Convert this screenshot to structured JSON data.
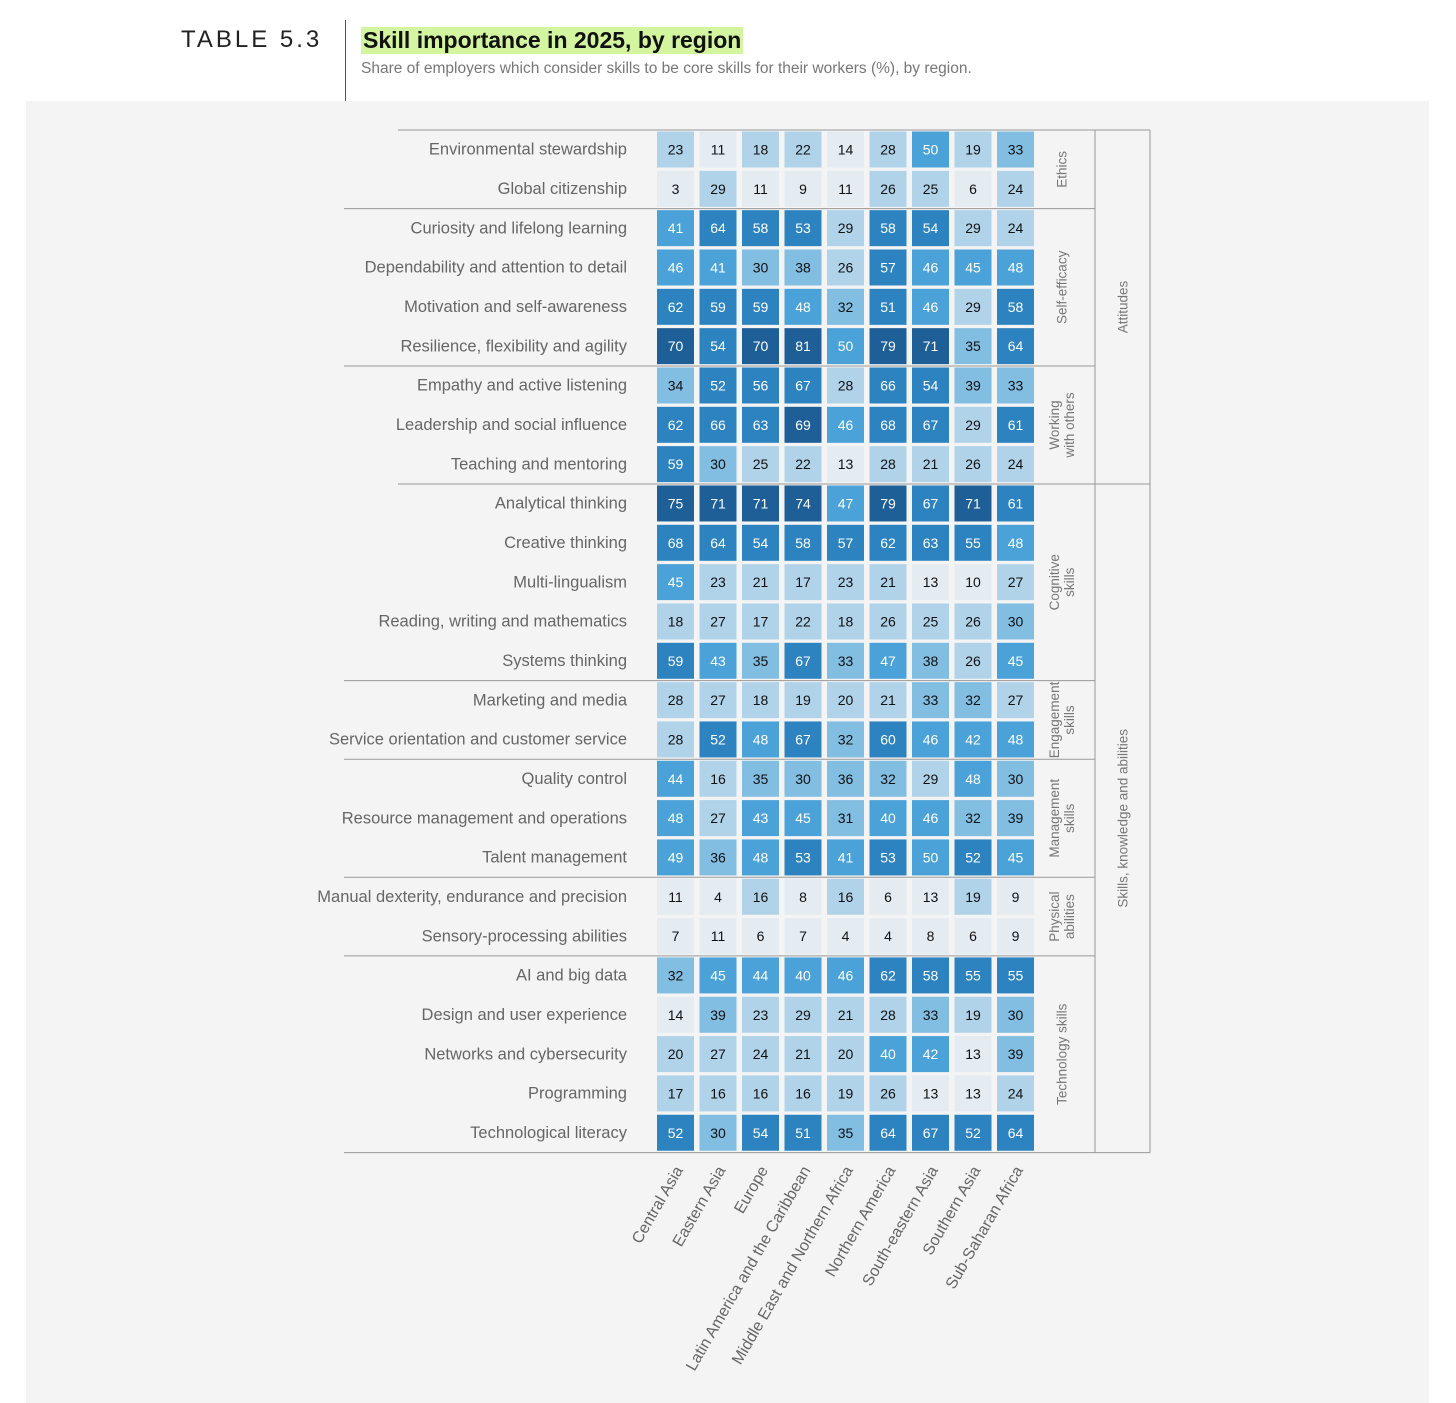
{
  "header": {
    "table_label": "TABLE 5.3",
    "title": "Skill importance in 2025, by region",
    "subtitle": "Share of employers which consider skills to be core skills for their workers (%), by region."
  },
  "colors": {
    "scale": [
      "#e4ebf1",
      "#b1d3ea",
      "#82bde2",
      "#4ba2d8",
      "#2d83c0",
      "#1e5f98"
    ],
    "highlight": "#d4f5a0"
  },
  "chart_data": {
    "type": "heatmap",
    "title": "Skill importance in 2025, by region",
    "subtitle": "Share of employers which consider skills to be core skills for their workers (%), by region.",
    "columns": [
      "Central Asia",
      "Eastern Asia",
      "Europe",
      "Latin America and the Caribbean",
      "Middle East and Northern Africa",
      "Northern America",
      "South-eastern Asia",
      "Southern Asia",
      "Sub-Saharan Africa"
    ],
    "rows": [
      "Environmental stewardship",
      "Global citizenship",
      "Curiosity and lifelong learning",
      "Dependability and attention to detail",
      "Motivation and self-awareness",
      "Resilience, flexibility and agility",
      "Empathy and active listening",
      "Leadership and social influence",
      "Teaching and mentoring",
      "Analytical thinking",
      "Creative thinking",
      "Multi-lingualism",
      "Reading, writing and mathematics",
      "Systems thinking",
      "Marketing and media",
      "Service orientation and customer service",
      "Quality control",
      "Resource management and operations",
      "Talent management",
      "Manual dexterity, endurance and precision",
      "Sensory-processing abilities",
      "AI and big data",
      "Design and user experience",
      "Networks and cybersecurity",
      "Programming",
      "Technological literacy"
    ],
    "values": [
      [
        23,
        11,
        18,
        22,
        14,
        28,
        50,
        19,
        33
      ],
      [
        3,
        29,
        11,
        9,
        11,
        26,
        25,
        6,
        24
      ],
      [
        41,
        64,
        58,
        53,
        29,
        58,
        54,
        29,
        24
      ],
      [
        46,
        41,
        30,
        38,
        26,
        57,
        46,
        45,
        48
      ],
      [
        62,
        59,
        59,
        48,
        32,
        51,
        46,
        29,
        58
      ],
      [
        70,
        54,
        70,
        81,
        50,
        79,
        71,
        35,
        64
      ],
      [
        34,
        52,
        56,
        67,
        28,
        66,
        54,
        39,
        33
      ],
      [
        62,
        66,
        63,
        69,
        46,
        68,
        67,
        29,
        61
      ],
      [
        59,
        30,
        25,
        22,
        13,
        28,
        21,
        26,
        24
      ],
      [
        75,
        71,
        71,
        74,
        47,
        79,
        67,
        71,
        61
      ],
      [
        68,
        64,
        54,
        58,
        57,
        62,
        63,
        55,
        48
      ],
      [
        45,
        23,
        21,
        17,
        23,
        21,
        13,
        10,
        27
      ],
      [
        18,
        27,
        17,
        22,
        18,
        26,
        25,
        26,
        30
      ],
      [
        59,
        43,
        35,
        67,
        33,
        47,
        38,
        26,
        45
      ],
      [
        28,
        27,
        18,
        19,
        20,
        21,
        33,
        32,
        27
      ],
      [
        28,
        52,
        48,
        67,
        32,
        60,
        46,
        42,
        48
      ],
      [
        44,
        16,
        35,
        30,
        36,
        32,
        29,
        48,
        30
      ],
      [
        48,
        27,
        43,
        45,
        31,
        40,
        46,
        32,
        39
      ],
      [
        49,
        36,
        48,
        53,
        41,
        53,
        50,
        52,
        45
      ],
      [
        11,
        4,
        16,
        8,
        16,
        6,
        13,
        19,
        9
      ],
      [
        7,
        11,
        6,
        7,
        4,
        4,
        8,
        6,
        9
      ],
      [
        32,
        45,
        44,
        40,
        46,
        62,
        58,
        55,
        55
      ],
      [
        14,
        39,
        23,
        29,
        21,
        28,
        33,
        19,
        30
      ],
      [
        20,
        27,
        24,
        21,
        20,
        40,
        42,
        13,
        39
      ],
      [
        17,
        16,
        16,
        16,
        19,
        26,
        13,
        13,
        24
      ],
      [
        52,
        30,
        54,
        51,
        35,
        64,
        67,
        52,
        64
      ]
    ],
    "groups": [
      {
        "label": [
          "Ethics"
        ],
        "start": 0,
        "end": 1
      },
      {
        "label": [
          "Self-efficacy"
        ],
        "start": 2,
        "end": 5
      },
      {
        "label": [
          "Working",
          "with others"
        ],
        "start": 6,
        "end": 8
      },
      {
        "label": [
          "Cognitive",
          "skills"
        ],
        "start": 9,
        "end": 13
      },
      {
        "label": [
          "Engagement",
          "skills"
        ],
        "start": 14,
        "end": 15
      },
      {
        "label": [
          "Management",
          "skills"
        ],
        "start": 16,
        "end": 18
      },
      {
        "label": [
          "Physical",
          "abilities"
        ],
        "start": 19,
        "end": 20
      },
      {
        "label": [
          "Technology skills"
        ],
        "start": 21,
        "end": 25
      }
    ],
    "supergroups": [
      {
        "label": "Attitudes",
        "start": 0,
        "end": 8
      },
      {
        "label": "Skills, knowledge and abilities",
        "start": 9,
        "end": 25
      }
    ],
    "value_unit": "%"
  }
}
